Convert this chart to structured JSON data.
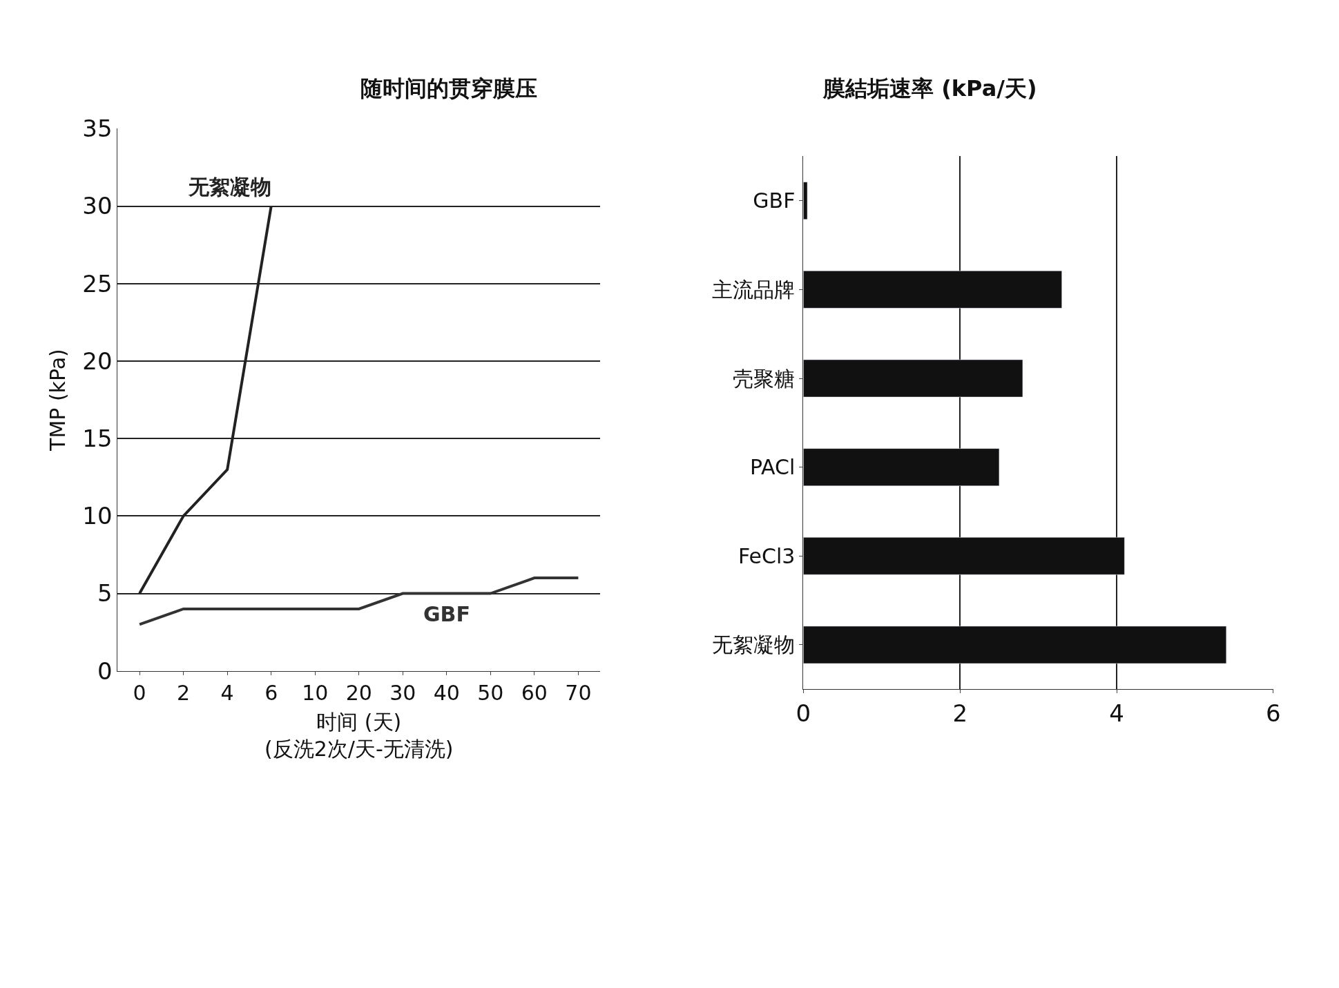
{
  "chart_data": [
    {
      "type": "line",
      "title": "随时间的贯穿膜压",
      "ylabel": "TMP (kPa)",
      "xlabel": "时间 (天)\n(反洗2次/天-无清洗)",
      "categories": [
        "0",
        "2",
        "4",
        "6",
        "10",
        "20",
        "30",
        "40",
        "50",
        "60",
        "70"
      ],
      "series": [
        {
          "name": "无絮凝物",
          "color": "#222222",
          "values": [
            5,
            10,
            13,
            30,
            null,
            null,
            null,
            null,
            null,
            null,
            null
          ]
        },
        {
          "name": "GBF",
          "color": "#333333",
          "values": [
            3,
            4,
            4,
            4,
            4,
            4,
            5,
            5,
            5,
            6,
            6
          ]
        }
      ],
      "ylim": [
        0,
        35
      ],
      "yticks": [
        0,
        5,
        10,
        15,
        20,
        25,
        30,
        35
      ],
      "grid": "y",
      "marker": "none",
      "line_style": "solid",
      "legend": false
    },
    {
      "type": "bar",
      "orientation": "horizontal",
      "title": "膜結垢速率 (kPa/天)",
      "categories": [
        "GBF",
        "主流品牌",
        "壳聚糖",
        "PACl",
        "FeCl3",
        "无絮凝物"
      ],
      "values": [
        0.05,
        3.3,
        2.8,
        2.5,
        4.1,
        5.4
      ],
      "color": "#111111",
      "xlim": [
        0,
        6
      ],
      "xticks": [
        0,
        2,
        4,
        6
      ],
      "grid": "x",
      "legend": false
    }
  ]
}
